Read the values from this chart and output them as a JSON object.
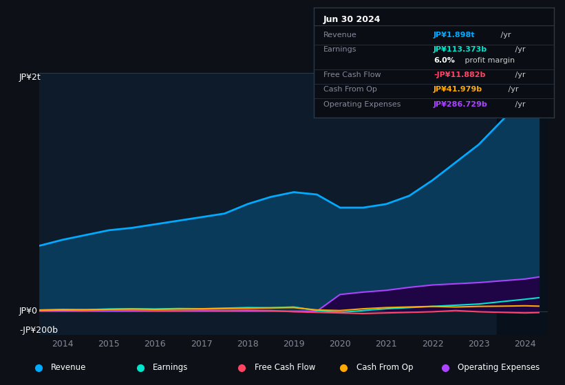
{
  "bg_color": "#0d1117",
  "plot_bg_color": "#0d1b2a",
  "grid_color": "#1e2d3d",
  "ylabel_top": "JP¥2t",
  "ylabel_zero": "JP¥0",
  "ylabel_bottom": "-JP¥200b",
  "ylim": [
    -200,
    2000
  ],
  "years": [
    2013.5,
    2014,
    2014.5,
    2015,
    2015.5,
    2016,
    2016.5,
    2017,
    2017.5,
    2018,
    2018.5,
    2019,
    2019.5,
    2020,
    2020.5,
    2021,
    2021.5,
    2022,
    2022.5,
    2023,
    2023.5,
    2024,
    2024.3
  ],
  "revenue": [
    550,
    600,
    640,
    680,
    700,
    730,
    760,
    790,
    820,
    900,
    960,
    1000,
    980,
    870,
    870,
    900,
    970,
    1100,
    1250,
    1400,
    1600,
    1800,
    1898
  ],
  "earnings": [
    10,
    15,
    12,
    18,
    20,
    18,
    22,
    20,
    25,
    30,
    28,
    35,
    5,
    -10,
    5,
    20,
    30,
    40,
    50,
    60,
    80,
    100,
    113
  ],
  "free_cash_flow": [
    5,
    8,
    5,
    10,
    8,
    5,
    5,
    8,
    5,
    8,
    5,
    -5,
    -10,
    -15,
    -20,
    -15,
    -10,
    -5,
    5,
    -5,
    -10,
    -15,
    -12
  ],
  "cash_from_op": [
    8,
    10,
    12,
    15,
    18,
    15,
    18,
    20,
    22,
    25,
    28,
    30,
    10,
    5,
    20,
    30,
    35,
    40,
    35,
    40,
    42,
    45,
    42
  ],
  "operating_exp": [
    0,
    0,
    0,
    0,
    0,
    0,
    0,
    0,
    0,
    0,
    0,
    0,
    0,
    140,
    160,
    175,
    200,
    220,
    230,
    240,
    255,
    270,
    287
  ],
  "revenue_color": "#00aaff",
  "revenue_fill": "#0a3a5a",
  "earnings_color": "#00e5cc",
  "free_cash_flow_color": "#ff4466",
  "cash_from_op_color": "#ffaa00",
  "operating_exp_color": "#aa44ff",
  "operating_exp_fill": "#220044",
  "info_box": {
    "date": "Jun 30 2024",
    "label_color": "#888899",
    "bg_color": "#0a0e14",
    "border_color": "#2a3a4a",
    "rows": [
      {
        "label": "Revenue",
        "value": "JP¥1.898t",
        "suffix": " /yr",
        "color": "#00aaff"
      },
      {
        "label": "Earnings",
        "value": "JP¥113.373b",
        "suffix": " /yr",
        "color": "#00e5cc"
      },
      {
        "label": "",
        "value": "6.0%",
        "suffix": " profit margin",
        "color": "#ffffff"
      },
      {
        "label": "Free Cash Flow",
        "value": "-JP¥11.882b",
        "suffix": " /yr",
        "color": "#ff4466"
      },
      {
        "label": "Cash From Op",
        "value": "JP¥41.979b",
        "suffix": " /yr",
        "color": "#ffaa00"
      },
      {
        "label": "Operating Expenses",
        "value": "JP¥286.729b",
        "suffix": " /yr",
        "color": "#aa44ff"
      }
    ]
  },
  "legend": [
    {
      "label": "Revenue",
      "color": "#00aaff"
    },
    {
      "label": "Earnings",
      "color": "#00e5cc"
    },
    {
      "label": "Free Cash Flow",
      "color": "#ff4466"
    },
    {
      "label": "Cash From Op",
      "color": "#ffaa00"
    },
    {
      "label": "Operating Expenses",
      "color": "#aa44ff"
    }
  ],
  "xticks": [
    2014,
    2015,
    2016,
    2017,
    2018,
    2019,
    2020,
    2021,
    2022,
    2023,
    2024
  ],
  "xlim": [
    2013.5,
    2024.5
  ],
  "shaded_right_x": 2023.4
}
